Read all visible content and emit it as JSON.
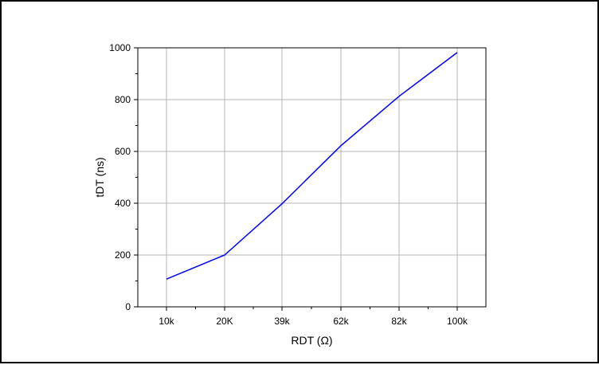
{
  "chart_data": {
    "type": "line",
    "title": "",
    "xlabel": "RDT (Ω)",
    "ylabel": "tDT (ns)",
    "categories": [
      "10k",
      "20K",
      "39k",
      "62k",
      "82k",
      "100k"
    ],
    "series": [
      {
        "values": [
          107,
          200,
          398,
          622,
          813,
          982
        ],
        "color": "#0000ff"
      }
    ],
    "ylim": [
      0,
      1000
    ],
    "yticks": [
      0,
      200,
      400,
      600,
      800,
      1000
    ],
    "ytick_labels": [
      "0",
      "200",
      "400",
      "600",
      "800",
      "1000"
    ],
    "grid": true,
    "legend": "none",
    "colors": {
      "line": "#0000ff",
      "grid": "#b4b4b4",
      "axis": "#000000"
    }
  }
}
